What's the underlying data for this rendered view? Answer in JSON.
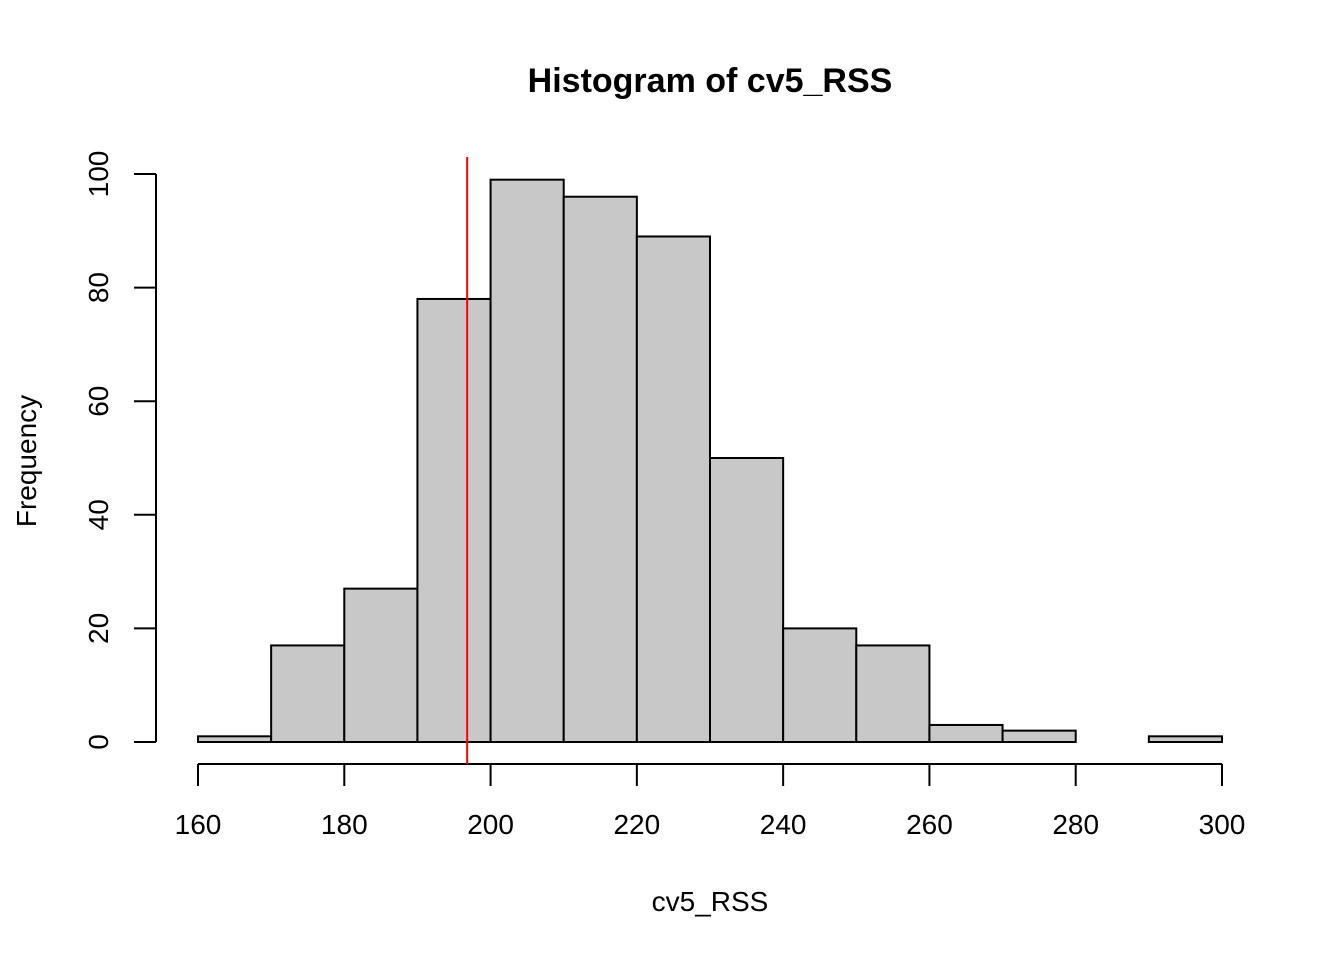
{
  "chart_data": {
    "type": "bar",
    "subtype": "histogram",
    "title": "Histogram of cv5_RSS",
    "xlabel": "cv5_RSS",
    "ylabel": "Frequency",
    "xlim": [
      160,
      300
    ],
    "ylim": [
      0,
      100
    ],
    "x_ticks": [
      160,
      180,
      200,
      220,
      240,
      260,
      280,
      300
    ],
    "y_ticks": [
      0,
      20,
      40,
      60,
      80,
      100
    ],
    "bins": [
      {
        "start": 160,
        "end": 170,
        "count": 1
      },
      {
        "start": 170,
        "end": 180,
        "count": 17
      },
      {
        "start": 180,
        "end": 190,
        "count": 27
      },
      {
        "start": 190,
        "end": 200,
        "count": 78
      },
      {
        "start": 200,
        "end": 210,
        "count": 99
      },
      {
        "start": 210,
        "end": 220,
        "count": 96
      },
      {
        "start": 220,
        "end": 230,
        "count": 89
      },
      {
        "start": 230,
        "end": 240,
        "count": 50
      },
      {
        "start": 240,
        "end": 250,
        "count": 20
      },
      {
        "start": 250,
        "end": 260,
        "count": 17
      },
      {
        "start": 260,
        "end": 270,
        "count": 3
      },
      {
        "start": 270,
        "end": 280,
        "count": 2
      },
      {
        "start": 280,
        "end": 290,
        "count": 0
      },
      {
        "start": 290,
        "end": 300,
        "count": 1
      }
    ],
    "reference_line": {
      "x": 196.8,
      "color": "#ff0000"
    },
    "bar_color": "#c8c8c8",
    "grid": false,
    "legend": "none"
  }
}
